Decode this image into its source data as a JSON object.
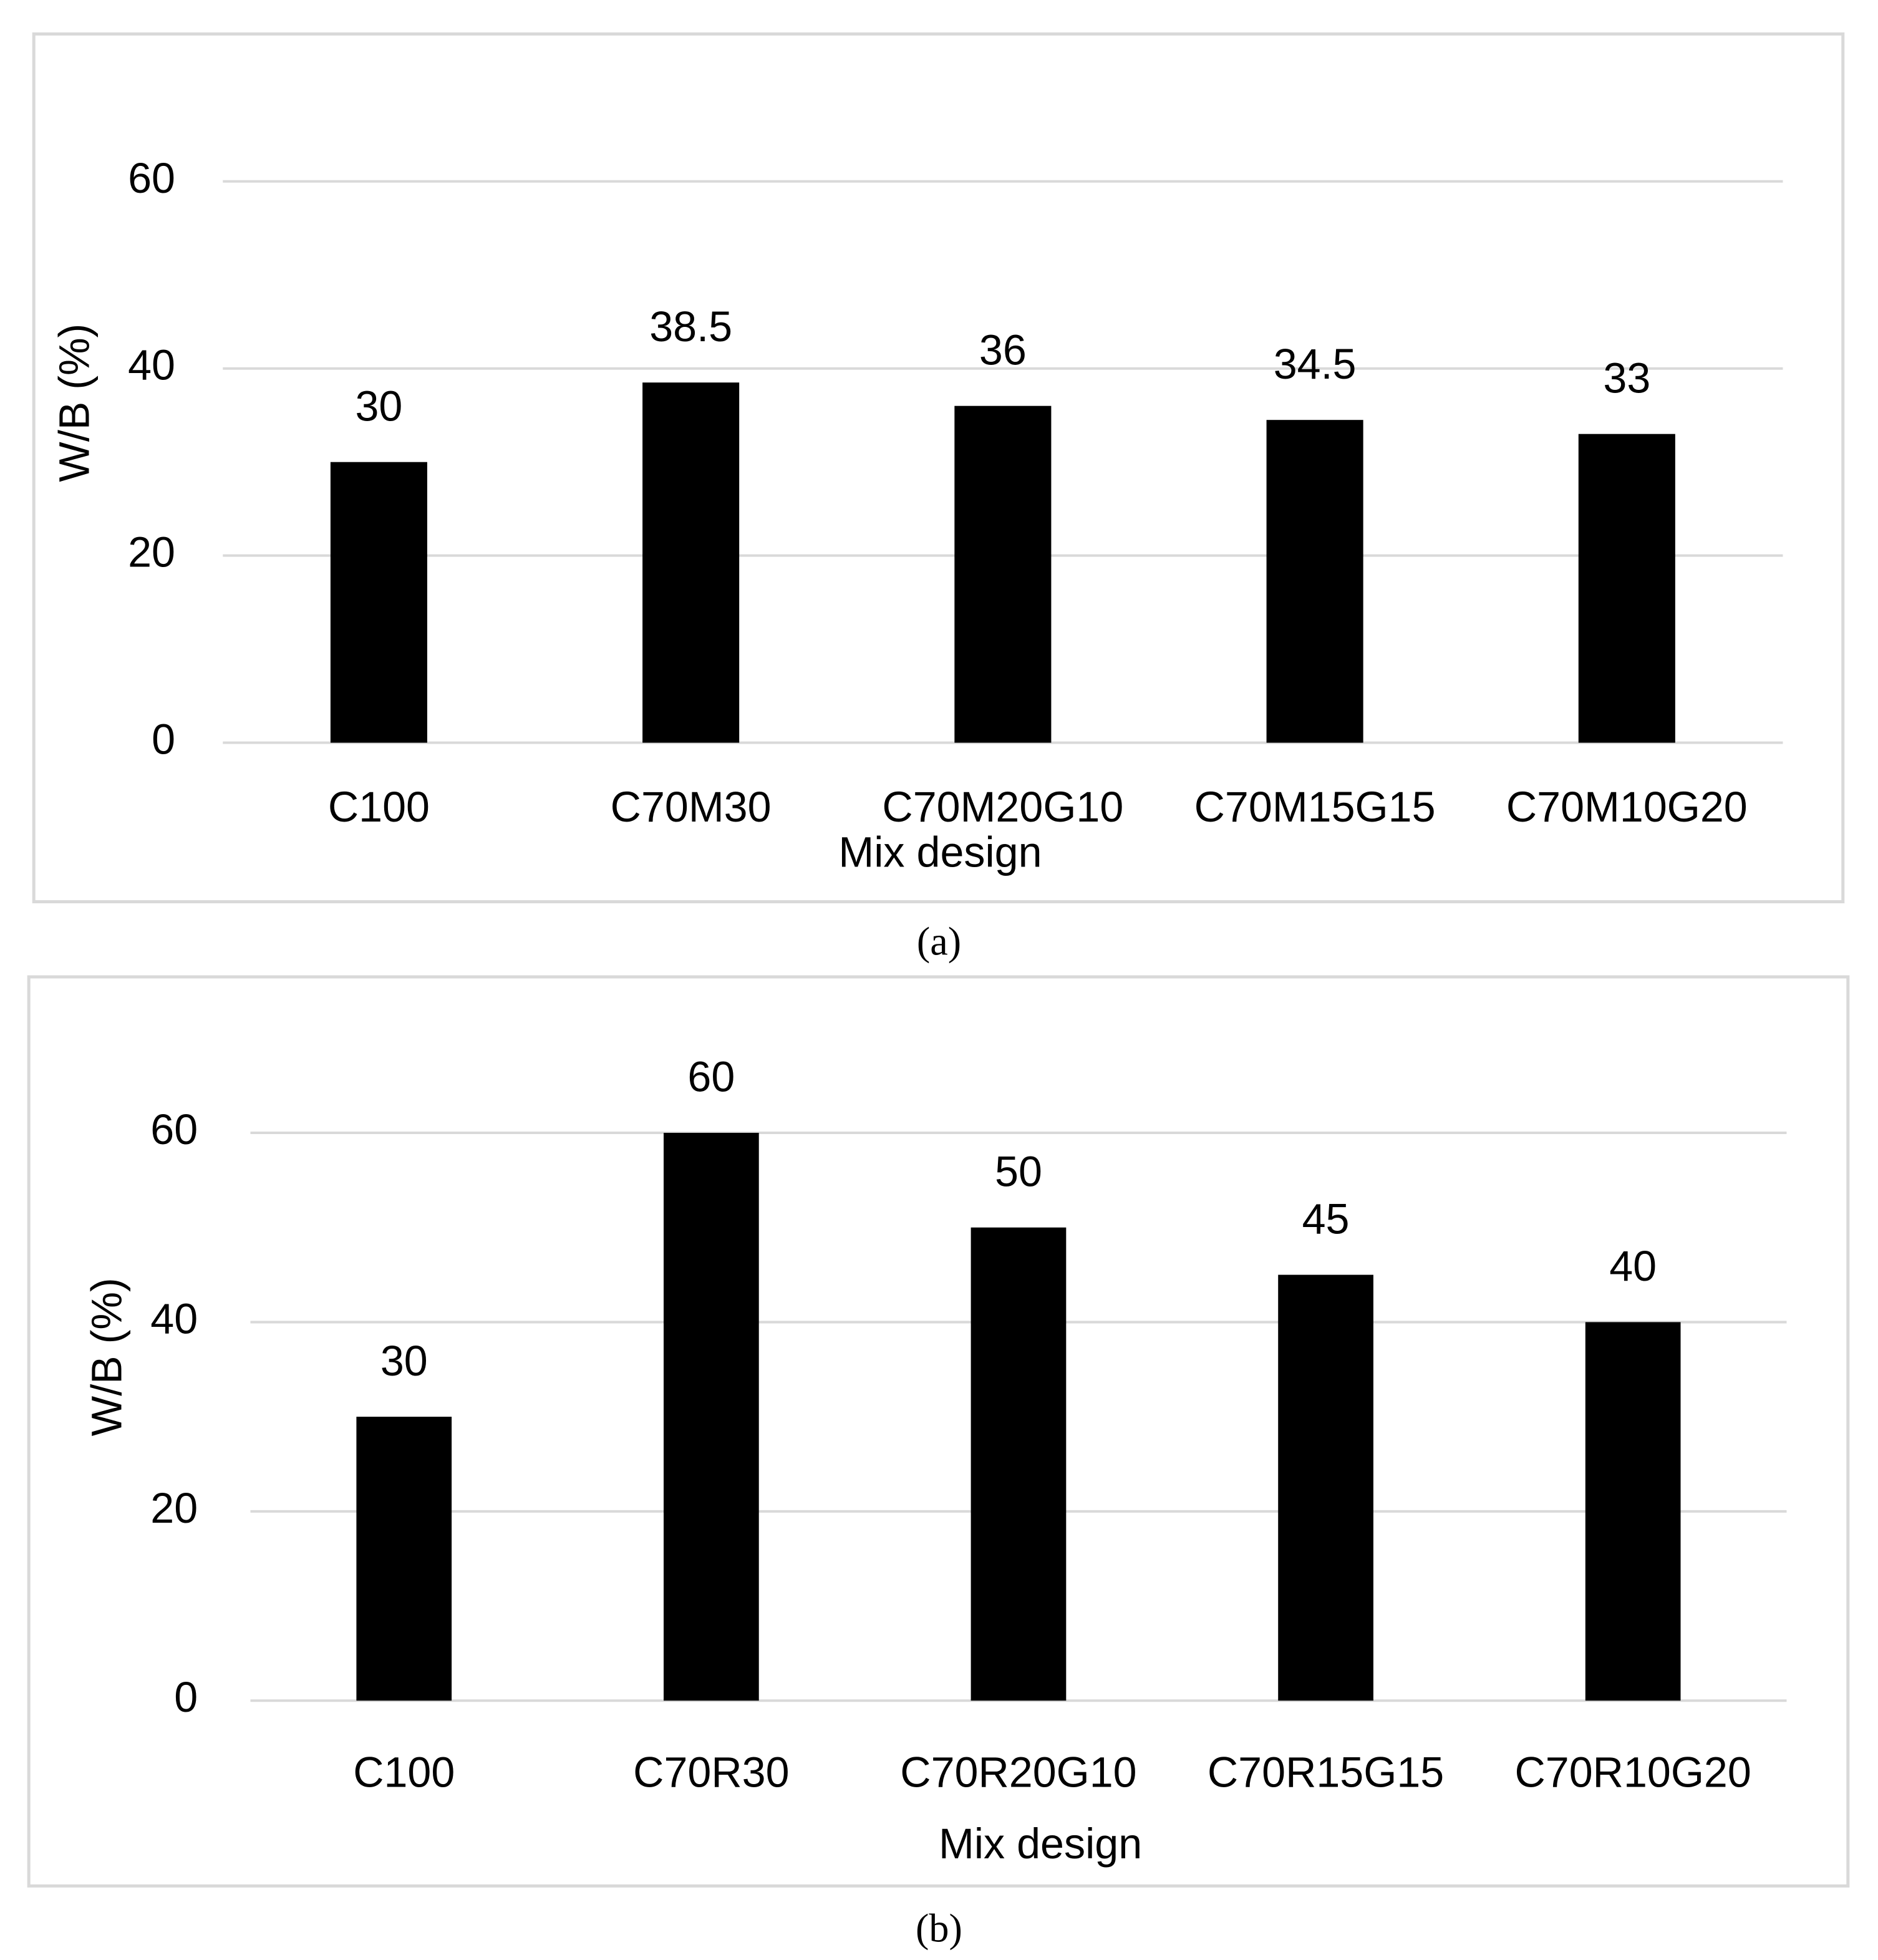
{
  "chart_data": [
    {
      "type": "bar",
      "caption": "(a)",
      "xlabel": "Mix design",
      "ylabel": "W/B (%)",
      "categories": [
        "C100",
        "C70M30",
        "C70M20G10",
        "C70M15G15",
        "C70M10G20"
      ],
      "values": [
        30,
        38.5,
        36,
        34.5,
        33
      ],
      "color": "#000000",
      "ylim": [
        0,
        70
      ],
      "yticks": [
        0,
        20,
        40,
        60
      ],
      "grid": true
    },
    {
      "type": "bar",
      "caption": "(b)",
      "xlabel": "Mix design",
      "ylabel": "W/B (%)",
      "categories": [
        "C100",
        "C70R30",
        "C70R20G10",
        "C70R15G15",
        "C70R10G20"
      ],
      "values": [
        30,
        60,
        50,
        45,
        40
      ],
      "color": "#000000",
      "ylim": [
        0,
        70
      ],
      "yticks": [
        0,
        20,
        40,
        60
      ],
      "grid": true
    }
  ]
}
